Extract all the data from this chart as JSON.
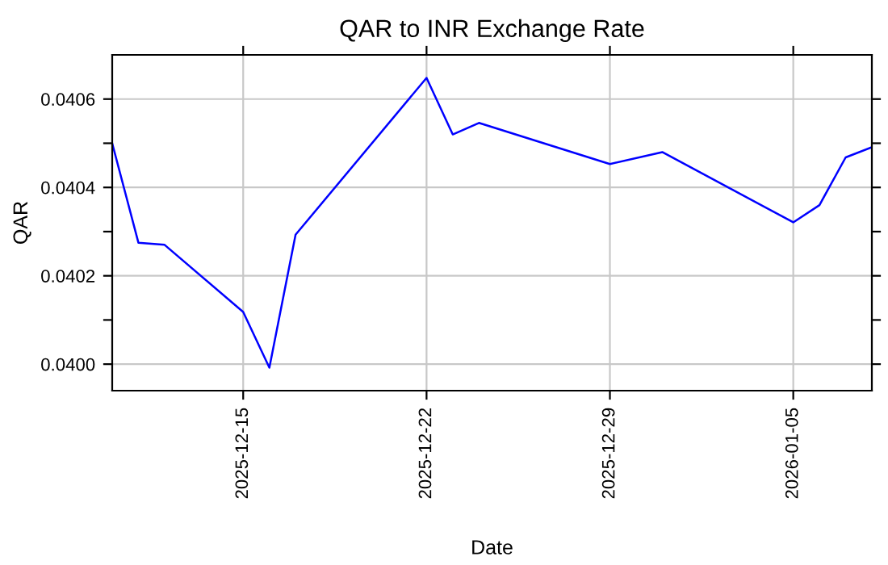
{
  "chart_data": {
    "type": "line",
    "title": "QAR to INR Exchange Rate",
    "xlabel": "Date",
    "ylabel": "QAR",
    "x": [
      "2025-12-10",
      "2025-12-11",
      "2025-12-12",
      "2025-12-15",
      "2025-12-16",
      "2025-12-17",
      "2025-12-22",
      "2025-12-23",
      "2025-12-24",
      "2025-12-29",
      "2025-12-31",
      "2026-01-05",
      "2026-01-06",
      "2026-01-07",
      "2026-01-08"
    ],
    "series": [
      {
        "color": "#0000ff",
        "values": [
          0.0405,
          0.040275,
          0.04027,
          0.040118,
          0.039992,
          0.040293,
          0.040648,
          0.04052,
          0.040546,
          0.040453,
          0.04048,
          0.040321,
          0.04036,
          0.040468,
          0.040491
        ]
      }
    ],
    "xlim": [
      "2025-12-10",
      "2026-01-08"
    ],
    "xticks": [
      "2025-12-15",
      "2025-12-22",
      "2025-12-29",
      "2026-01-05"
    ],
    "ylim": [
      0.03994,
      0.0407
    ],
    "yticks": [
      {
        "value": 0.04,
        "label": "0.0400"
      },
      {
        "value": 0.0401,
        "label": null
      },
      {
        "value": 0.0402,
        "label": "0.0402"
      },
      {
        "value": 0.0403,
        "label": null
      },
      {
        "value": 0.0404,
        "label": "0.0404"
      },
      {
        "value": 0.0405,
        "label": null
      },
      {
        "value": 0.0406,
        "label": "0.0406"
      }
    ],
    "grid": true,
    "marker": "none",
    "line_style": "solid"
  }
}
